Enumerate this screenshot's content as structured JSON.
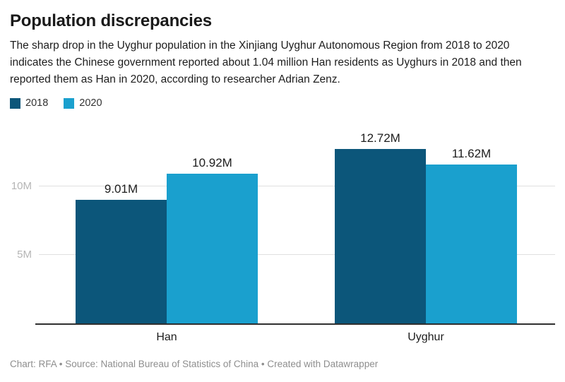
{
  "header": {
    "title": "Population discrepancies",
    "description": "The sharp drop in the Uyghur population in the Xinjiang Uyghur Autonomous Region from 2018 to 2020 indicates the Chinese government reported about 1.04 million Han residents as Uyghurs in 2018 and then reported them as Han in 2020, according to researcher Adrian Zenz."
  },
  "legend": {
    "items": [
      {
        "label": "2018",
        "color": "#0c567a"
      },
      {
        "label": "2020",
        "color": "#1aa0ce"
      }
    ]
  },
  "chart_data": {
    "type": "bar",
    "title": "Population discrepancies",
    "categories": [
      "Han",
      "Uyghur"
    ],
    "series": [
      {
        "name": "2018",
        "color": "#0c567a",
        "values": [
          9.01,
          12.72
        ],
        "labels": [
          "9.01M",
          "12.72M"
        ]
      },
      {
        "name": "2020",
        "color": "#1aa0ce",
        "values": [
          10.92,
          11.62
        ],
        "labels": [
          "10.92M",
          "11.62M"
        ]
      }
    ],
    "xlabel": "",
    "ylabel": "",
    "ylim": [
      0,
      14
    ],
    "yticks": [
      {
        "value": 5,
        "label": "5M"
      },
      {
        "value": 10,
        "label": "10M"
      }
    ],
    "grid": "horizontal",
    "legend_position": "top-left",
    "colors": {
      "gridline": "#e0e0e0",
      "axis_line": "#2f2f2f",
      "tick_label": "#b5b5b5",
      "value_label": "#1d1d1d"
    }
  },
  "footer": {
    "text": "Chart: RFA • Source: National Bureau of Statistics of China • Created with Datawrapper"
  }
}
